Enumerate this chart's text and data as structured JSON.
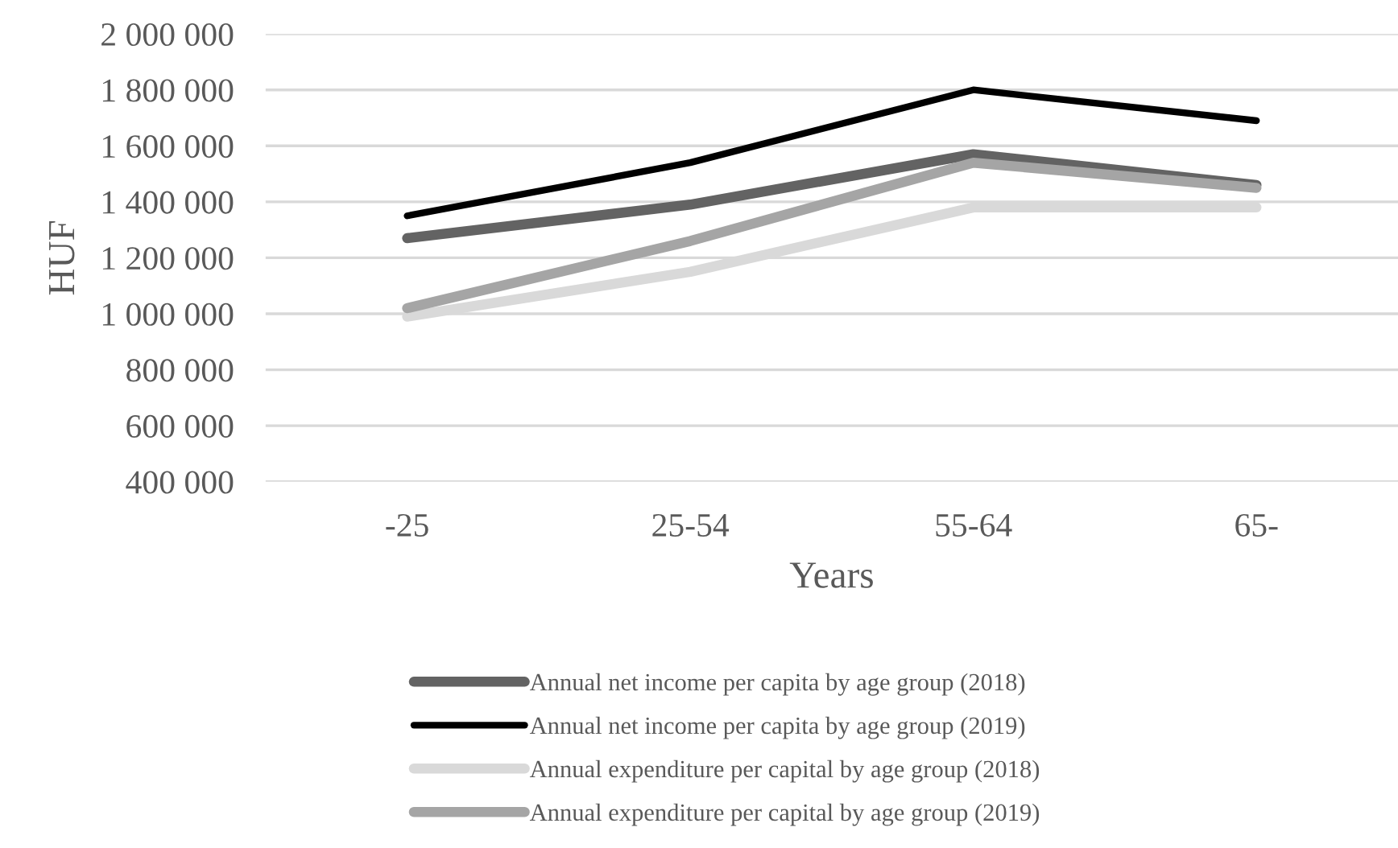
{
  "chart_data": {
    "type": "line",
    "xlabel": "Years",
    "ylabel": "HUF",
    "categories": [
      "-25",
      "25-54",
      "55-64",
      "65-"
    ],
    "series": [
      {
        "name": "Annual net income per capita by age group (2018)",
        "color": "#636363",
        "values": [
          1270000,
          1390000,
          1570000,
          1460000
        ]
      },
      {
        "name": "Annual net income per capita by age group (2019)",
        "color": "#000000",
        "values": [
          1350000,
          1540000,
          1800000,
          1690000
        ]
      },
      {
        "name": "Annual expenditure per capital by age group (2018)",
        "color": "#d9d9d9",
        "values": [
          990000,
          1150000,
          1380000,
          1380000
        ]
      },
      {
        "name": "Annual expenditure per capital by age group (2019)",
        "color": "#a5a5a5",
        "values": [
          1020000,
          1260000,
          1540000,
          1450000
        ]
      }
    ],
    "ylim": [
      400000,
      2000000
    ],
    "yticks": [
      {
        "value": 400000,
        "label": "400 000"
      },
      {
        "value": 600000,
        "label": "600 000"
      },
      {
        "value": 800000,
        "label": "800 000"
      },
      {
        "value": 1000000,
        "label": "1 000 000"
      },
      {
        "value": 1200000,
        "label": "1 200 000"
      },
      {
        "value": 1400000,
        "label": "1 400 000"
      },
      {
        "value": 1600000,
        "label": "1 600 000"
      },
      {
        "value": 1800000,
        "label": "1 800 000"
      },
      {
        "value": 2000000,
        "label": "2 000 000"
      }
    ],
    "grid": "y",
    "legend": "bottom",
    "marker": "none",
    "line_style": "solid"
  }
}
